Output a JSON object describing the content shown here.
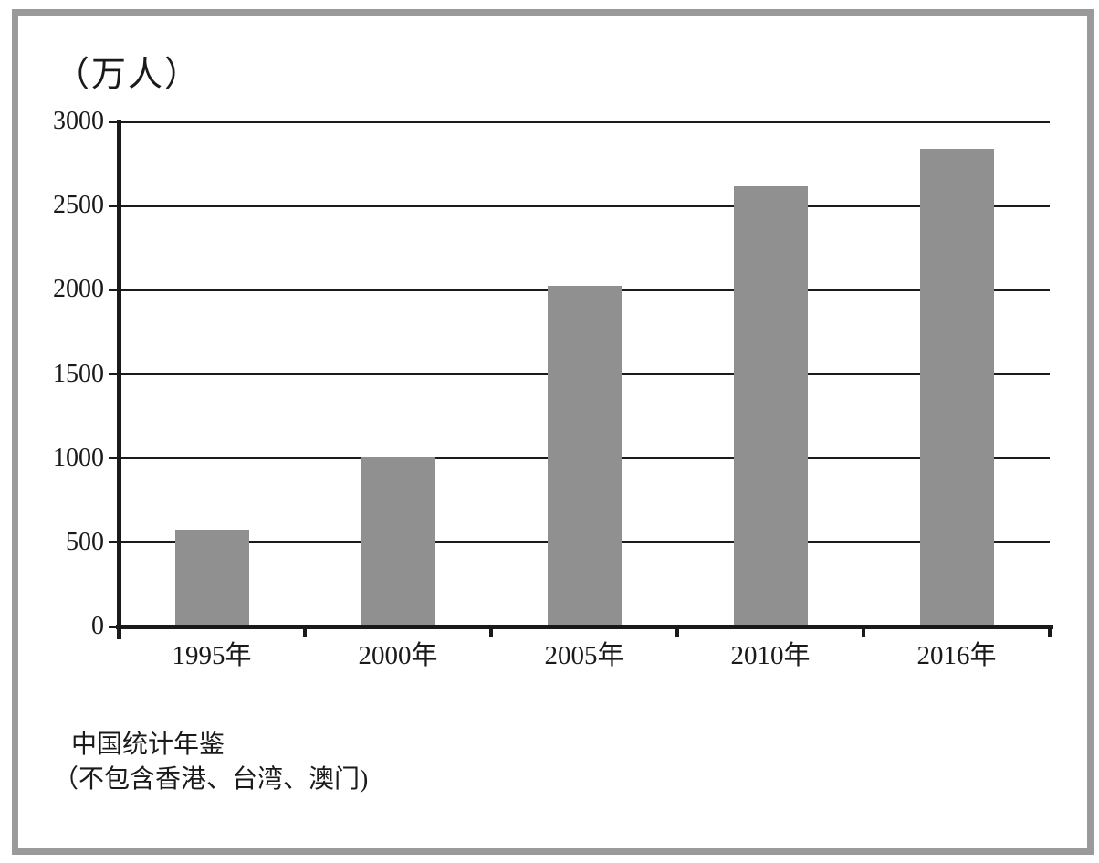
{
  "frame": {
    "border_color": "#9a9a9a",
    "background": "#ffffff"
  },
  "chart_data": {
    "type": "bar",
    "title": "",
    "ylabel": "（万人）",
    "xlabel": "",
    "categories": [
      "1995年",
      "2000年",
      "2005年",
      "2010年",
      "2016年"
    ],
    "values": [
      575,
      1010,
      2025,
      2615,
      2835
    ],
    "ylim": [
      0,
      3000
    ],
    "yticks": [
      0,
      500,
      1000,
      1500,
      2000,
      2500,
      3000
    ],
    "grid": true,
    "legend_position": "none",
    "bar_color": "#909090",
    "axis_color": "#1a1a1a",
    "notes": [
      "中国统计年鉴",
      "（不包含香港、台湾、澳门)"
    ]
  }
}
